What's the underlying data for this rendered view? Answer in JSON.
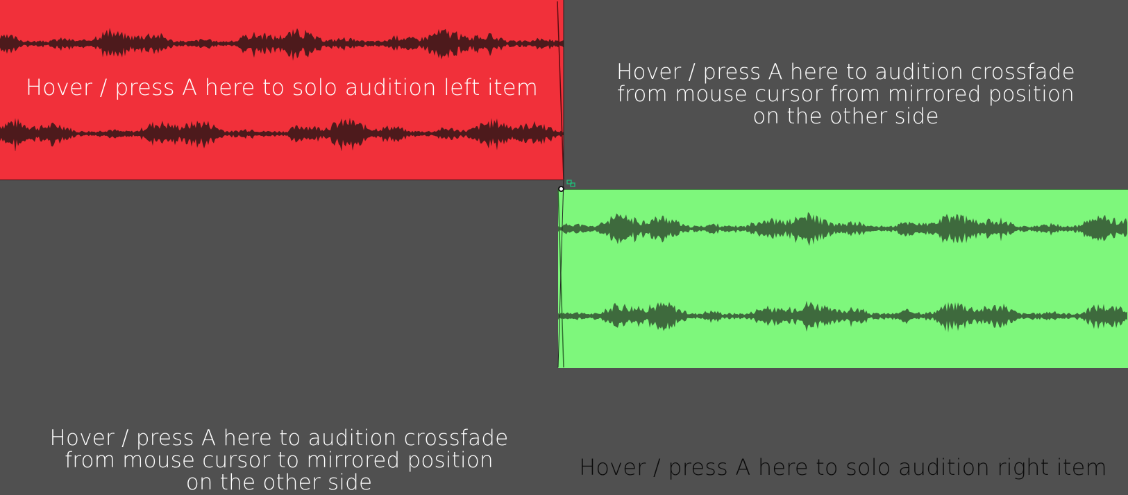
{
  "left_item": {
    "label": "Hover / press A here to solo audition left item",
    "color": "#f1303a",
    "wave_color": "#4d1a1c"
  },
  "right_item": {
    "label": "Hover / press A here to solo audition right item",
    "color": "#7ef77c",
    "wave_color": "#3e6a3d"
  },
  "zones": {
    "top_right": "Hover / press A here to audition crossfade\nfrom mouse cursor from mirrored position\non the other side",
    "bottom_left": "Hover / press A here to audition crossfade\nfrom mouse cursor to mirrored position\non the other side"
  },
  "icons": {
    "crossfade": "crossfade-icon",
    "handle": "fade-handle-icon"
  },
  "colors": {
    "background": "#505050",
    "accent_green": "#1fbf7a"
  }
}
